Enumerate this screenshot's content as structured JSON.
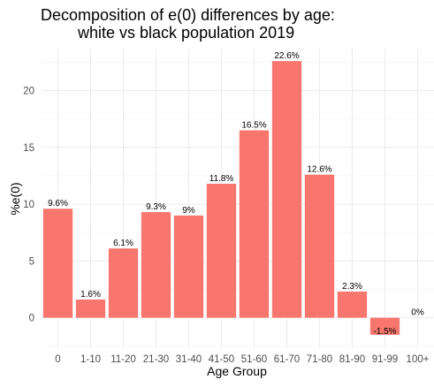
{
  "chart_data": {
    "type": "bar",
    "title_line1": "Decomposition of e(0) differences by age:",
    "title_line2": "white vs black population 2019",
    "xlabel": "Age Group",
    "ylabel": "%e(0)",
    "categories": [
      "0",
      "1-10",
      "11-20",
      "21-30",
      "31-40",
      "41-50",
      "51-60",
      "61-70",
      "71-80",
      "81-90",
      "91-99",
      "100+"
    ],
    "values": [
      9.6,
      1.6,
      6.1,
      9.3,
      9.0,
      11.8,
      16.5,
      22.6,
      12.6,
      2.3,
      -1.5,
      0.0
    ],
    "labels": [
      "9.6%",
      "1.6%",
      "6.1%",
      "9.3%",
      "9%",
      "11.8%",
      "16.5%",
      "22.6%",
      "12.6%",
      "2.3%",
      "-1.5%",
      "0%"
    ],
    "yticks": [
      0,
      5,
      10,
      15,
      20
    ],
    "ylim": [
      -2.6,
      23.7
    ],
    "bar_color": "#F8766D",
    "grid": true,
    "legend": "none"
  }
}
